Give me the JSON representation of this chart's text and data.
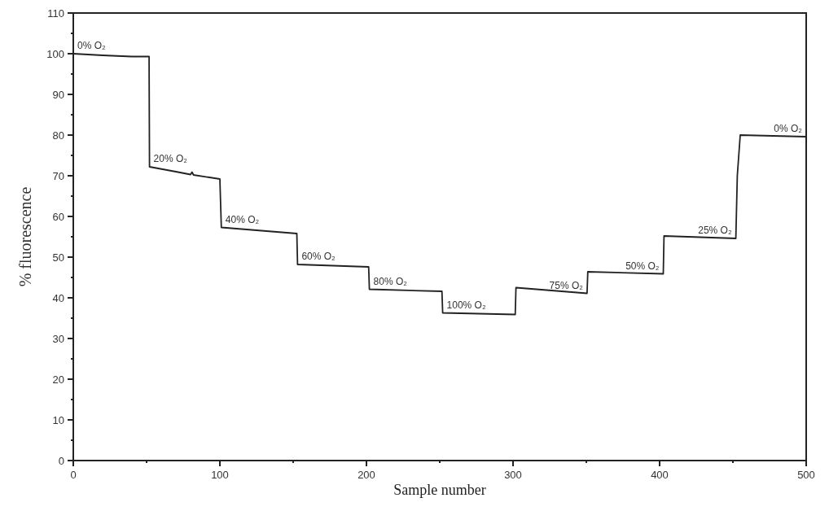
{
  "chart_data": {
    "type": "line",
    "xlabel": "Sample number",
    "ylabel": "% fluorescence",
    "xlim": [
      0,
      500
    ],
    "ylim": [
      0,
      110
    ],
    "xticks": [
      0,
      {
        "value": 50,
        "label": null
      },
      100,
      {
        "value": 150,
        "label": null
      },
      200,
      {
        "value": 250,
        "label": null
      },
      300,
      {
        "value": 350,
        "label": null
      },
      400,
      {
        "value": 450,
        "label": null
      },
      500
    ],
    "yticks": [
      0,
      {
        "value": 5,
        "label": null
      },
      10,
      {
        "value": 15,
        "label": null
      },
      20,
      {
        "value": 25,
        "label": null
      },
      30,
      {
        "value": 35,
        "label": null
      },
      40,
      {
        "value": 45,
        "label": null
      },
      50,
      {
        "value": 55,
        "label": null
      },
      60,
      {
        "value": 65,
        "label": null
      },
      70,
      {
        "value": 75,
        "label": null
      },
      80,
      {
        "value": 85,
        "label": null
      },
      90,
      {
        "value": 95,
        "label": null
      },
      100,
      {
        "value": 105,
        "label": null
      },
      110
    ],
    "grid": false,
    "marker": "none",
    "line_style": "solid",
    "series": [
      {
        "color": "#222222",
        "x": [
          0,
          20,
          40,
          51.7,
          52,
          70,
          80,
          81,
          82,
          100,
          101,
          152.5,
          153,
          201.5,
          202,
          251.5,
          252,
          301.5,
          302,
          350.5,
          351,
          402.5,
          403,
          452,
          453,
          455,
          500
        ],
        "values": [
          100,
          99.6,
          99.3,
          99.3,
          72.2,
          71,
          70.3,
          70.9,
          70.2,
          69.2,
          57.3,
          55.8,
          48.2,
          47.6,
          42.1,
          41.6,
          36.3,
          35.9,
          42.5,
          41.1,
          46.4,
          45.9,
          55.2,
          54.6,
          70,
          80,
          79.6
        ]
      }
    ],
    "annotations": [
      {
        "text": "0% O₂",
        "x": 0,
        "y": 100
      },
      {
        "text": "20% O₂",
        "x": 52,
        "y": 72.2
      },
      {
        "text": "40% O₂",
        "x": 101,
        "y": 57.3
      },
      {
        "text": "60% O₂",
        "x": 153,
        "y": 48.2
      },
      {
        "text": "80% O₂",
        "x": 202,
        "y": 42.1
      },
      {
        "text": "100% O₂",
        "x": 252,
        "y": 36.3
      },
      {
        "text": "75% O₂",
        "x": 350.5,
        "y": 41.1
      },
      {
        "text": "50% O₂",
        "x": 402.5,
        "y": 45.9
      },
      {
        "text": "25% O₂",
        "x": 452,
        "y": 54.6
      },
      {
        "text": "0% O₂",
        "x": 500,
        "y": 79.6
      }
    ]
  }
}
